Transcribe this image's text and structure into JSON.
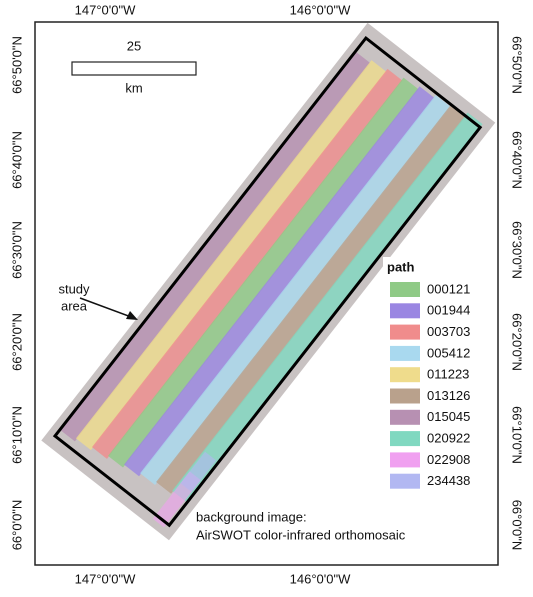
{
  "axes": {
    "top": [
      "147°0'0\"W",
      "146°0'0\"W"
    ],
    "bottom": [
      "147°0'0\"W",
      "146°0'0\"W"
    ],
    "left": [
      "66°50'0\"N",
      "66°40'0\"N",
      "66°30'0\"N",
      "66°20'0\"N",
      "66°10'0\"N",
      "66°0'0\"N"
    ],
    "right": [
      "66°50'0\"N",
      "66°40'0\"N",
      "66°30'0\"N",
      "66°20'0\"N",
      "66°10'0\"N",
      "66°0'0\"N"
    ]
  },
  "scale_bar": {
    "value": 25,
    "unit": "km"
  },
  "legend": {
    "title": "path",
    "items": [
      {
        "label": "000121",
        "color": "#8fca86"
      },
      {
        "label": "001944",
        "color": "#9a86e2"
      },
      {
        "label": "003703",
        "color": "#f08c8c"
      },
      {
        "label": "005412",
        "color": "#a9d9ef"
      },
      {
        "label": "011223",
        "color": "#efdc8c"
      },
      {
        "label": "013126",
        "color": "#b9a18c"
      },
      {
        "label": "015045",
        "color": "#b790b2"
      },
      {
        "label": "020922",
        "color": "#80d8c0"
      },
      {
        "label": "022908",
        "color": "#f0a0f0"
      },
      {
        "label": "234438",
        "color": "#b2b8f2"
      }
    ]
  },
  "annotations": {
    "study_area": [
      "study",
      "area"
    ]
  },
  "caption": [
    "background image:",
    "AirSWOT color-infrared orthomosaic"
  ]
}
